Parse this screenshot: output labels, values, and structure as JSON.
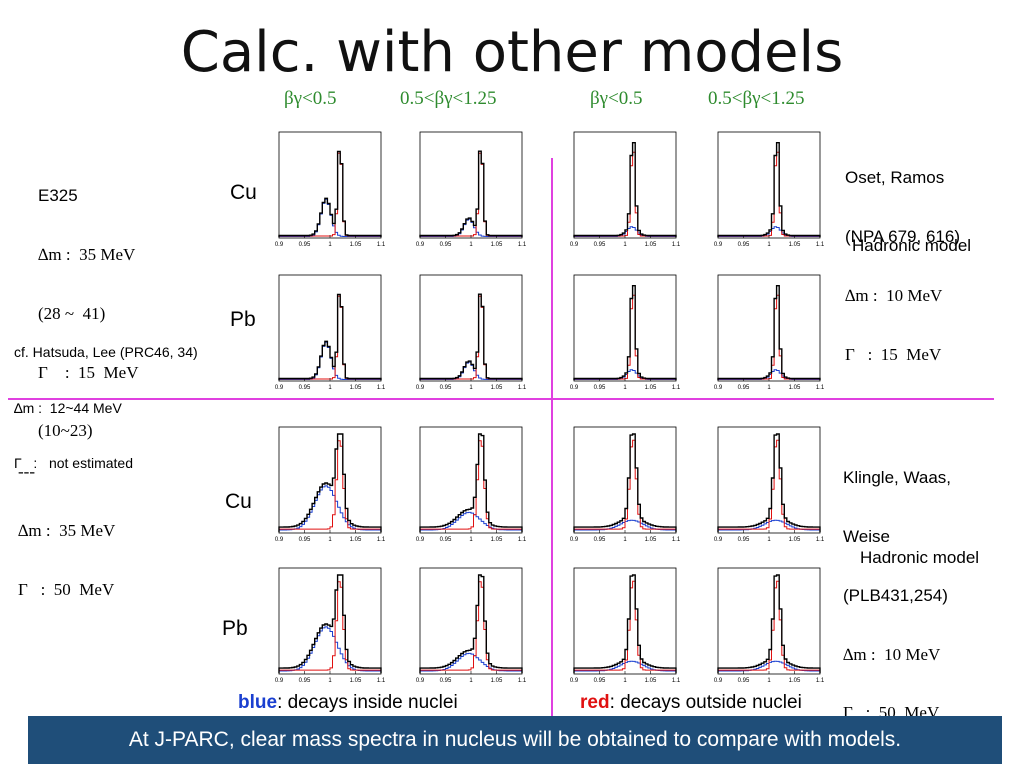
{
  "slide": {
    "title": "Calc. with other models",
    "column_headers": [
      "βγ<0.5",
      "0.5<βγ<1.25",
      "βγ<0.5",
      "0.5<βγ<1.25"
    ],
    "row_labels": [
      "Cu",
      "Pb",
      "Cu",
      "Pb"
    ],
    "tick_labels": [
      "0.9",
      "0.95",
      "1",
      "1.05",
      "1.1"
    ],
    "notes": {
      "e325": {
        "name": "E325",
        "line1": "∆m :  35 MeV",
        "line2": "(28 ~  41)",
        "line3": "Γ    :  15  MeV",
        "line4": "(10~23)"
      },
      "hatsuda": {
        "line1": "cf. Hatsuda, Lee (PRC46, 34)",
        "line2": "∆m :  12~44 MeV",
        "line3": "Γ   :   not estimated"
      },
      "lower_left": {
        "line1": "---",
        "line2": "∆m :  35 MeV",
        "line3": "Γ   :  50  MeV"
      },
      "oset": {
        "line1": "Oset, Ramos",
        "line2": "(NPA 679, 616)",
        "line3": "∆m :  10 MeV",
        "line4": "Γ   :  15  MeV",
        "model": "Hadronic model"
      },
      "klingle": {
        "line1": "Klingle, Waas,",
        "line2": "Weise",
        "line3": "(PLB431,254)",
        "line4": "∆m :  10 MeV",
        "line5": "Γ   :  50  MeV",
        "model": "Hadronic model"
      }
    },
    "legend": {
      "blue_word": "blue",
      "blue_rest": ": decays inside nuclei",
      "red_word": "red",
      "red_rest": ": decays outside nuclei"
    },
    "footer": "At J-PARC, clear mass spectra in nucleus will be obtained to compare with models.",
    "colors": {
      "header_green": "#2e8b2e",
      "divider": "#e040e0",
      "footer_bg": "#1f4e79",
      "blue": "#1a3fd0",
      "red": "#e01010"
    }
  }
}
